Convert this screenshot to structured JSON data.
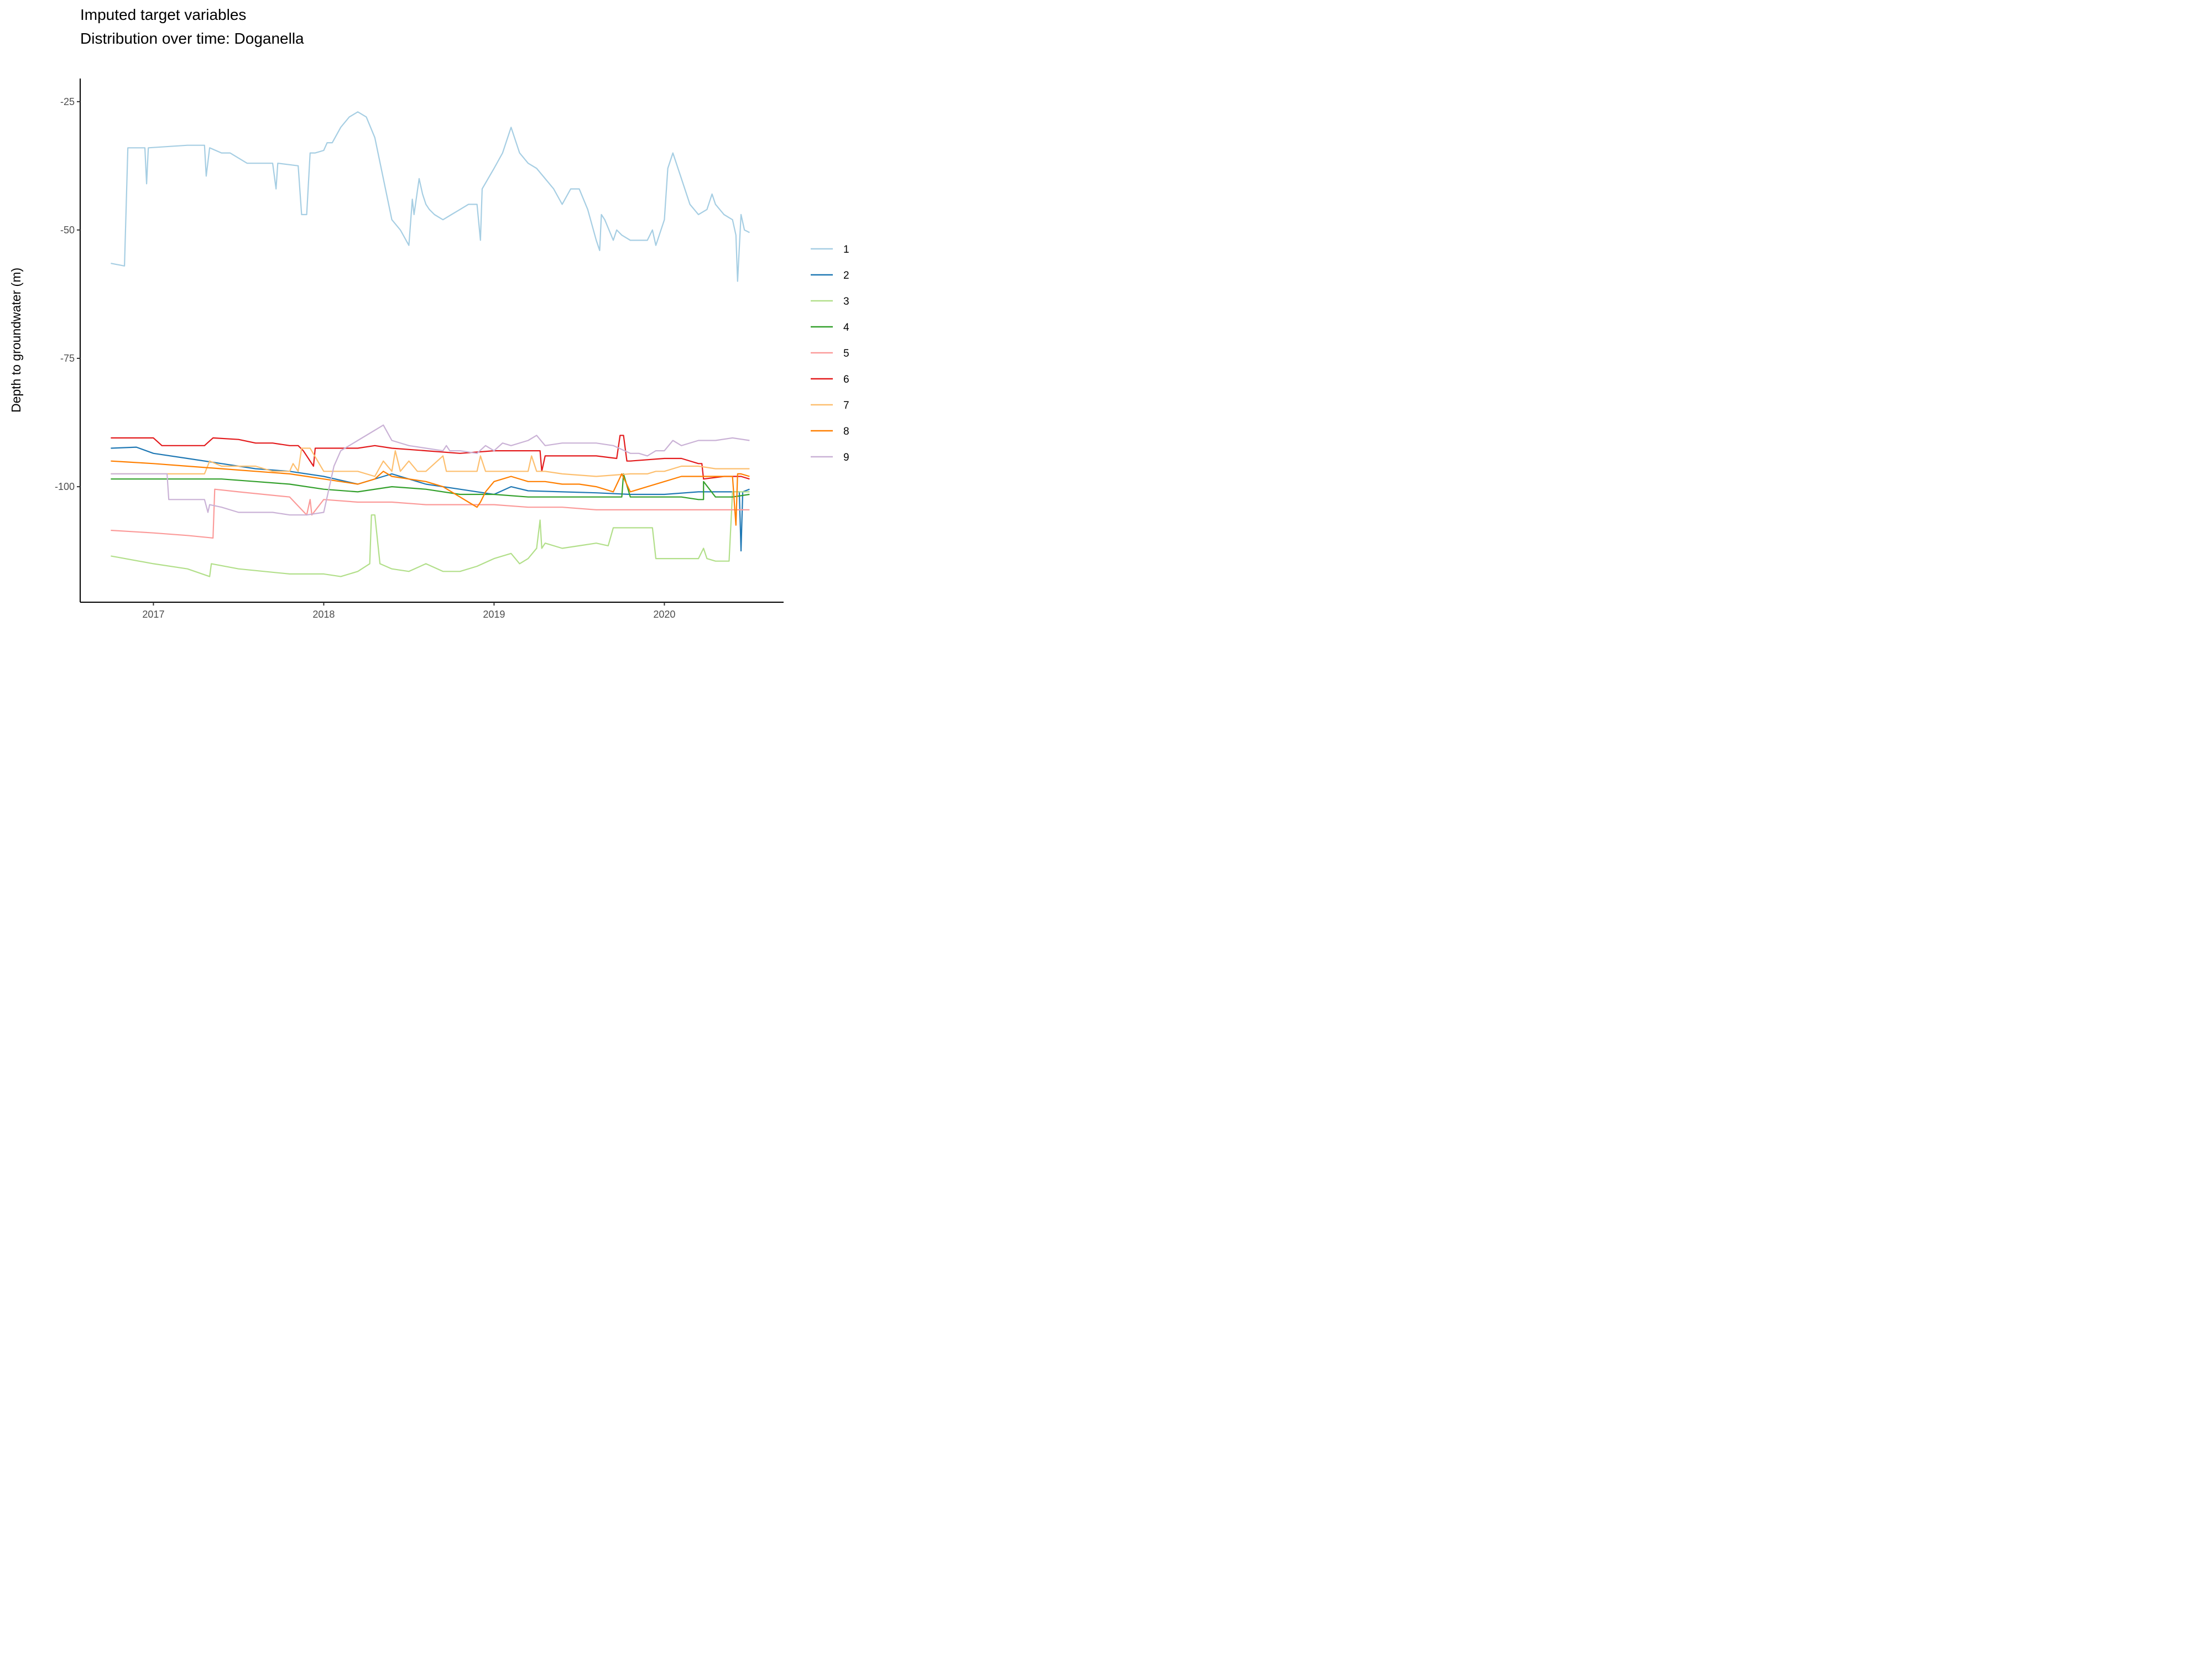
{
  "chart_data": {
    "type": "line",
    "title_lines": [
      "Imputed target variables",
      "Distribution over time: Doganella"
    ],
    "xlabel": "",
    "ylabel": "Depth to groundwater (m)",
    "x_tick_labels": [
      "2017",
      "2018",
      "2019",
      "2020"
    ],
    "x_ticks": [
      2017.0,
      2018.0,
      2019.0,
      2020.0
    ],
    "xlim": [
      2016.57,
      2020.7
    ],
    "y_tick_labels": [
      "-25",
      "-50",
      "-75",
      "-100"
    ],
    "y_ticks": [
      -25,
      -50,
      -75,
      -100
    ],
    "ylim": [
      -122.5,
      -20.5
    ],
    "grid": false,
    "legend_position": "right",
    "series": [
      {
        "name": "1",
        "color": "#a6cee3",
        "x": [
          2016.75,
          2016.83,
          2016.85,
          2016.86,
          2016.95,
          2016.96,
          2016.97,
          2017.2,
          2017.3,
          2017.31,
          2017.33,
          2017.4,
          2017.45,
          2017.55,
          2017.7,
          2017.72,
          2017.73,
          2017.85,
          2017.87,
          2017.9,
          2017.92,
          2017.95,
          2018.0,
          2018.02,
          2018.05,
          2018.1,
          2018.15,
          2018.2,
          2018.25,
          2018.3,
          2018.35,
          2018.4,
          2018.45,
          2018.5,
          2018.52,
          2018.53,
          2018.56,
          2018.58,
          2018.6,
          2018.62,
          2018.65,
          2018.7,
          2018.75,
          2018.8,
          2018.85,
          2018.9,
          2018.92,
          2018.93,
          2019.0,
          2019.05,
          2019.1,
          2019.15,
          2019.2,
          2019.25,
          2019.3,
          2019.35,
          2019.4,
          2019.45,
          2019.5,
          2019.55,
          2019.6,
          2019.62,
          2019.63,
          2019.65,
          2019.7,
          2019.72,
          2019.75,
          2019.8,
          2019.85,
          2019.9,
          2019.93,
          2019.95,
          2020.0,
          2020.02,
          2020.05,
          2020.1,
          2020.15,
          2020.2,
          2020.25,
          2020.28,
          2020.3,
          2020.35,
          2020.4,
          2020.42,
          2020.43,
          2020.45,
          2020.47,
          2020.5
        ],
        "y": [
          -56.5,
          -57,
          -34,
          -34,
          -34,
          -41,
          -34,
          -33.5,
          -33.5,
          -39.5,
          -34,
          -35,
          -35,
          -37,
          -37,
          -42,
          -37,
          -37.5,
          -47,
          -47,
          -35,
          -35,
          -34.5,
          -33,
          -33,
          -30,
          -28,
          -27,
          -28,
          -32,
          -40,
          -48,
          -50,
          -53,
          -44,
          -47,
          -40,
          -43,
          -45,
          -46,
          -47,
          -48,
          -47,
          -46,
          -45,
          -45,
          -52,
          -42,
          -38,
          -35,
          -30,
          -35,
          -37,
          -38,
          -40,
          -42,
          -45,
          -42,
          -42,
          -46,
          -52,
          -54,
          -47,
          -48,
          -52,
          -50,
          -51,
          -52,
          -52,
          -52,
          -50,
          -53,
          -48,
          -38,
          -35,
          -40,
          -45,
          -47,
          -46,
          -43,
          -45,
          -47,
          -48,
          -51,
          -60,
          -47,
          -50,
          -50.5
        ]
      },
      {
        "name": "2",
        "color": "#1f78b4",
        "x": [
          2016.75,
          2016.9,
          2017.0,
          2017.2,
          2017.4,
          2017.6,
          2017.8,
          2018.0,
          2018.2,
          2018.35,
          2018.4,
          2018.5,
          2018.6,
          2018.8,
          2019.0,
          2019.1,
          2019.2,
          2019.4,
          2019.6,
          2019.8,
          2020.0,
          2020.2,
          2020.4,
          2020.44,
          2020.45,
          2020.46,
          2020.5
        ],
        "y": [
          -92.5,
          -92.3,
          -93.5,
          -94.5,
          -95.5,
          -96.5,
          -97,
          -98,
          -99.5,
          -98,
          -97.5,
          -98.5,
          -99.5,
          -100.5,
          -101.5,
          -100,
          -100.8,
          -101,
          -101.2,
          -101.5,
          -101.5,
          -101,
          -101,
          -101,
          -112.5,
          -101,
          -100.5
        ]
      },
      {
        "name": "3",
        "color": "#b2df8a",
        "x": [
          2016.75,
          2016.8,
          2017.0,
          2017.2,
          2017.33,
          2017.34,
          2017.5,
          2017.8,
          2018.0,
          2018.1,
          2018.2,
          2018.27,
          2018.28,
          2018.3,
          2018.33,
          2018.4,
          2018.5,
          2018.6,
          2018.7,
          2018.8,
          2018.9,
          2019.0,
          2019.1,
          2019.15,
          2019.2,
          2019.25,
          2019.27,
          2019.28,
          2019.3,
          2019.4,
          2019.5,
          2019.6,
          2019.67,
          2019.7,
          2019.8,
          2019.9,
          2019.93,
          2019.95,
          2020.0,
          2020.1,
          2020.2,
          2020.23,
          2020.25,
          2020.3,
          2020.38,
          2020.4,
          2020.5
        ],
        "y": [
          -113.5,
          -113.8,
          -115,
          -116,
          -117.5,
          -115,
          -116,
          -117,
          -117,
          -117.5,
          -116.5,
          -115,
          -105.5,
          -105.5,
          -115,
          -116,
          -116.5,
          -115,
          -116.5,
          -116.5,
          -115.5,
          -114,
          -113,
          -115,
          -114,
          -112,
          -106.5,
          -112,
          -111,
          -112,
          -111.5,
          -111,
          -111.5,
          -108,
          -108,
          -108,
          -108,
          -114,
          -114,
          -114,
          -114,
          -112,
          -114,
          -114.5,
          -114.5,
          -101,
          -101
        ]
      },
      {
        "name": "4",
        "color": "#33a02c",
        "x": [
          2016.75,
          2017.0,
          2017.2,
          2017.4,
          2017.6,
          2017.8,
          2018.0,
          2018.2,
          2018.4,
          2018.6,
          2018.8,
          2019.0,
          2019.2,
          2019.4,
          2019.6,
          2019.75,
          2019.76,
          2019.8,
          2020.0,
          2020.1,
          2020.1,
          2020.2,
          2020.23,
          2020.23,
          2020.3,
          2020.4,
          2020.5
        ],
        "y": [
          -98.5,
          -98.5,
          -98.5,
          -98.5,
          -99,
          -99.5,
          -100.5,
          -101,
          -100,
          -100.5,
          -101.5,
          -101.5,
          -102,
          -102,
          -102,
          -102,
          -97.5,
          -102,
          -102,
          -102,
          -102,
          -102.5,
          -102.5,
          -99,
          -102,
          -102,
          -101.5
        ]
      },
      {
        "name": "5",
        "color": "#fb9a99",
        "x": [
          2016.75,
          2017.0,
          2017.2,
          2017.35,
          2017.36,
          2017.5,
          2017.8,
          2017.9,
          2017.92,
          2017.93,
          2018.0,
          2018.2,
          2018.4,
          2018.6,
          2018.8,
          2019.0,
          2019.2,
          2019.4,
          2019.6,
          2019.8,
          2020.0,
          2020.2,
          2020.4,
          2020.5
        ],
        "y": [
          -108.5,
          -109,
          -109.5,
          -110,
          -100.5,
          -101,
          -102,
          -105.5,
          -102.5,
          -105.5,
          -102.5,
          -103,
          -103,
          -103.5,
          -103.5,
          -103.5,
          -104,
          -104,
          -104.5,
          -104.5,
          -104.5,
          -104.5,
          -104.5,
          -104.5
        ]
      },
      {
        "name": "6",
        "color": "#e31a1c",
        "x": [
          2016.75,
          2016.9,
          2017.0,
          2017.05,
          2017.3,
          2017.35,
          2017.5,
          2017.6,
          2017.7,
          2017.8,
          2017.85,
          2017.88,
          2017.94,
          2017.95,
          2018.0,
          2018.2,
          2018.3,
          2018.4,
          2018.6,
          2018.8,
          2019.0,
          2019.2,
          2019.27,
          2019.28,
          2019.3,
          2019.5,
          2019.6,
          2019.72,
          2019.74,
          2019.76,
          2019.78,
          2019.8,
          2020.0,
          2020.1,
          2020.2,
          2020.22,
          2020.23,
          2020.35,
          2020.4,
          2020.45,
          2020.5
        ],
        "y": [
          -90.5,
          -90.5,
          -90.5,
          -92,
          -92,
          -90.5,
          -90.8,
          -91.5,
          -91.5,
          -92,
          -92,
          -93,
          -96,
          -92.5,
          -92.5,
          -92.5,
          -92,
          -92.5,
          -93,
          -93.5,
          -93,
          -93,
          -93,
          -97,
          -94,
          -94,
          -94,
          -94.5,
          -90,
          -90,
          -95,
          -95,
          -94.5,
          -94.5,
          -95.5,
          -95.5,
          -98.5,
          -98,
          -98,
          -98,
          -98.5
        ]
      },
      {
        "name": "7",
        "color": "#fdbf6f",
        "x": [
          2016.75,
          2017.0,
          2017.3,
          2017.33,
          2017.4,
          2017.5,
          2017.6,
          2017.7,
          2017.8,
          2017.82,
          2017.85,
          2017.87,
          2017.92,
          2018.0,
          2018.2,
          2018.3,
          2018.35,
          2018.4,
          2018.42,
          2018.45,
          2018.5,
          2018.55,
          2018.6,
          2018.7,
          2018.72,
          2018.75,
          2018.8,
          2018.9,
          2018.92,
          2018.95,
          2019.0,
          2019.1,
          2019.2,
          2019.22,
          2019.25,
          2019.3,
          2019.4,
          2019.6,
          2019.8,
          2019.9,
          2019.95,
          2020.0,
          2020.1,
          2020.2,
          2020.3,
          2020.4,
          2020.5
        ],
        "y": [
          -97.5,
          -97.5,
          -97.5,
          -95,
          -96,
          -96,
          -96,
          -97,
          -97,
          -95.5,
          -97,
          -92.5,
          -92.5,
          -97,
          -97,
          -98,
          -95,
          -97,
          -93,
          -97,
          -95,
          -97,
          -97,
          -94,
          -97,
          -97,
          -97,
          -97,
          -94,
          -97,
          -97,
          -97,
          -97,
          -94,
          -97,
          -97,
          -97.5,
          -98,
          -97.5,
          -97.5,
          -97,
          -97,
          -96,
          -96,
          -96.5,
          -96.5,
          -96.5
        ]
      },
      {
        "name": "8",
        "color": "#ff7f00",
        "x": [
          2016.75,
          2016.85,
          2017.0,
          2017.2,
          2017.4,
          2017.6,
          2017.8,
          2017.9,
          2018.0,
          2018.1,
          2018.2,
          2018.3,
          2018.35,
          2018.4,
          2018.5,
          2018.6,
          2018.7,
          2018.8,
          2018.85,
          2018.9,
          2018.92,
          2018.95,
          2019.0,
          2019.05,
          2019.1,
          2019.2,
          2019.3,
          2019.4,
          2019.5,
          2019.6,
          2019.7,
          2019.75,
          2019.8,
          2019.9,
          2020.0,
          2020.1,
          2020.2,
          2020.3,
          2020.4,
          2020.42,
          2020.43,
          2020.45,
          2020.5
        ],
        "y": [
          -95,
          -95.2,
          -95.5,
          -96,
          -96.5,
          -97,
          -97.5,
          -98,
          -98.5,
          -99,
          -99.5,
          -98.5,
          -97,
          -98,
          -98.5,
          -99,
          -100,
          -102,
          -103,
          -104,
          -103,
          -101,
          -99,
          -98.5,
          -98,
          -99,
          -99,
          -99.5,
          -99.5,
          -100,
          -101,
          -97.5,
          -101,
          -100,
          -99,
          -98,
          -98,
          -98,
          -98,
          -107.5,
          -97.5,
          -97.5,
          -98
        ]
      },
      {
        "name": "9",
        "color": "#cab2d6",
        "x": [
          2016.75,
          2017.0,
          2017.08,
          2017.09,
          2017.2,
          2017.3,
          2017.32,
          2017.33,
          2017.4,
          2017.5,
          2017.6,
          2017.7,
          2017.8,
          2017.9,
          2018.0,
          2018.05,
          2018.06,
          2018.1,
          2018.2,
          2018.3,
          2018.35,
          2018.4,
          2018.5,
          2018.6,
          2018.7,
          2018.72,
          2018.74,
          2018.8,
          2018.9,
          2018.95,
          2019.0,
          2019.05,
          2019.1,
          2019.2,
          2019.25,
          2019.3,
          2019.4,
          2019.5,
          2019.6,
          2019.7,
          2019.8,
          2019.85,
          2019.9,
          2019.95,
          2020.0,
          2020.05,
          2020.1,
          2020.2,
          2020.3,
          2020.4,
          2020.5
        ],
        "y": [
          -97.5,
          -97.5,
          -97.5,
          -102.5,
          -102.5,
          -102.5,
          -105,
          -103.5,
          -104,
          -105,
          -105,
          -105,
          -105.5,
          -105.5,
          -105,
          -97.5,
          -96,
          -93,
          -91,
          -89,
          -88,
          -91,
          -92,
          -92.5,
          -93,
          -92,
          -93,
          -93,
          -93.5,
          -92,
          -93,
          -91.5,
          -92,
          -91,
          -90,
          -92,
          -91.5,
          -91.5,
          -91.5,
          -92,
          -93.5,
          -93.5,
          -94,
          -93,
          -93,
          -91,
          -92,
          -91,
          -91,
          -90.5,
          -91
        ]
      }
    ]
  }
}
